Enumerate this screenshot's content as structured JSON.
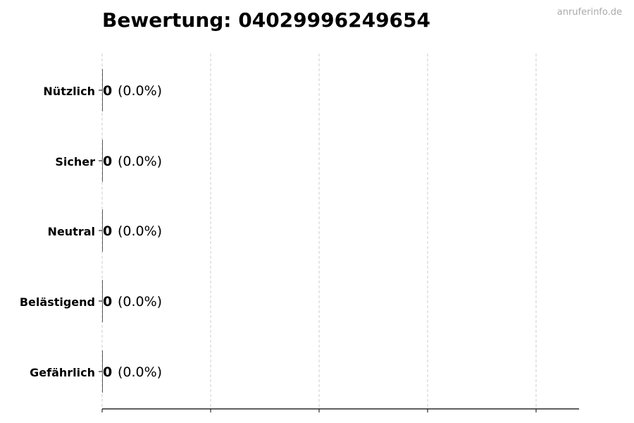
{
  "chart_data": {
    "type": "bar",
    "orientation": "horizontal",
    "title": "Bewertung: 04029996249654",
    "categories": [
      "Nützlich",
      "Sicher",
      "Neutral",
      "Belästigend",
      "Gefährlich"
    ],
    "values": [
      0,
      0,
      0,
      0,
      0
    ],
    "value_labels": [
      "0",
      "0",
      "0",
      "0",
      "0"
    ],
    "percent_labels": [
      "(0.0%)",
      "(0.0%)",
      "(0.0%)",
      "(0.0%)",
      "(0.0%)"
    ],
    "xlabel": "",
    "ylabel": "",
    "x_tick_count": 5,
    "x_tick_labels": [],
    "grid": "x-dashed",
    "colors": {
      "bar": "#333333",
      "grid": "#cccccc",
      "axis": "#000000"
    }
  },
  "watermark": "anruferinfo.de"
}
